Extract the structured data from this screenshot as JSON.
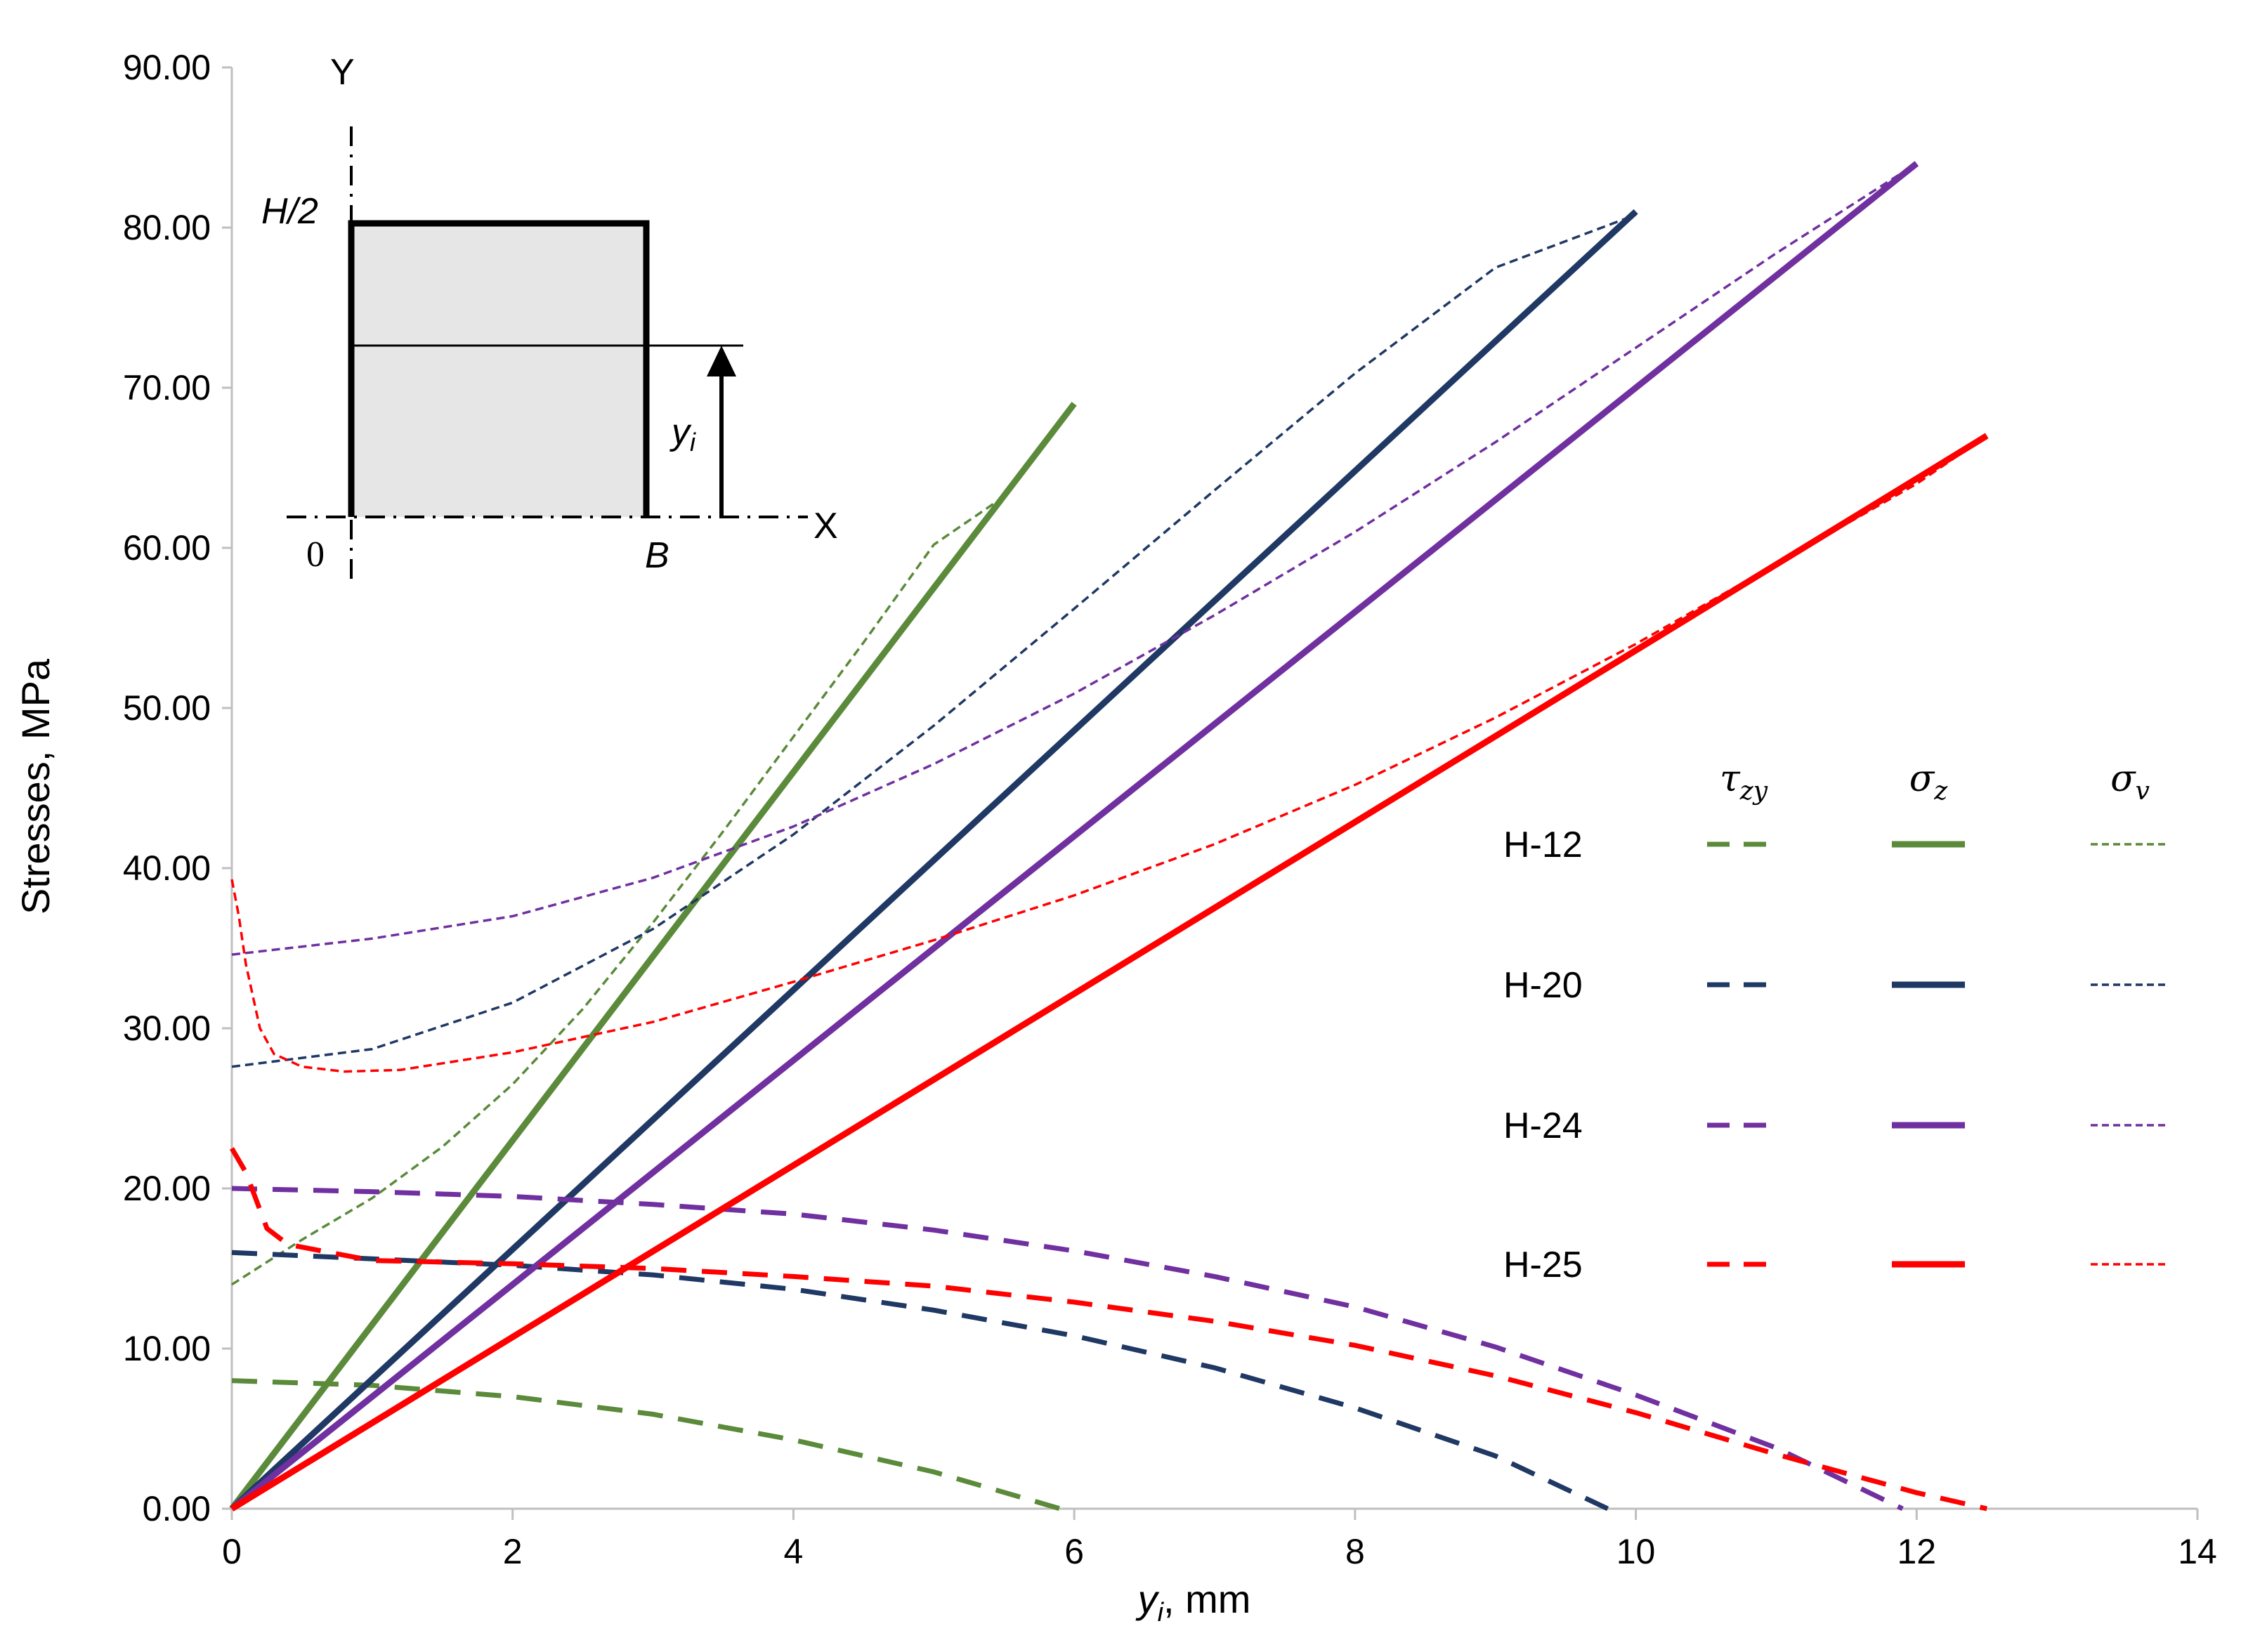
{
  "colors": {
    "H-12": "#5a8a3a",
    "H-20": "#1f3864",
    "H-24": "#7030a0",
    "H-25": "#ff0000",
    "axis": "#bfbfbf",
    "inset_fill": "#e6e6e6"
  },
  "chart_data": {
    "type": "line",
    "xlabel": {
      "main": "y",
      "sub": "i",
      "rest": ", mm"
    },
    "ylabel": "Stresses, MPa",
    "xlim": [
      0,
      14
    ],
    "ylim": [
      0,
      90
    ],
    "x_ticks": [
      0,
      2,
      4,
      6,
      8,
      10,
      12,
      14
    ],
    "x_tick_labels": [
      "0",
      "2",
      "4",
      "6",
      "8",
      "10",
      "12",
      "14"
    ],
    "y_ticks": [
      0,
      10,
      20,
      30,
      40,
      50,
      60,
      70,
      80,
      90
    ],
    "y_tick_labels": [
      "0.00",
      "10.00",
      "20.00",
      "30.00",
      "40.00",
      "50.00",
      "60.00",
      "70.00",
      "80.00",
      "90.00"
    ],
    "grid": false,
    "legend": {
      "placement": "right",
      "columns": [
        {
          "main": "τ",
          "sub": "zy"
        },
        {
          "main": "σ",
          "sub": "z"
        },
        {
          "main": "σ",
          "sub": "v"
        }
      ],
      "rows": [
        "H-12",
        "H-20",
        "H-24",
        "H-25"
      ]
    },
    "series": [
      {
        "name": "H-12",
        "stress": "tau_zy",
        "style": "dash",
        "x": [
          0,
          1,
          2,
          3,
          4,
          5,
          5.9
        ],
        "y": [
          8,
          7.7,
          7.0,
          5.9,
          4.3,
          2.3,
          0
        ]
      },
      {
        "name": "H-12",
        "stress": "sigma_z",
        "style": "solid",
        "x": [
          0,
          6.0
        ],
        "y": [
          0,
          69
        ]
      },
      {
        "name": "H-12",
        "stress": "sigma_v",
        "style": "dot",
        "x": [
          0,
          0.5,
          1,
          1.5,
          2,
          2.5,
          3,
          3.5,
          4,
          4.5,
          5,
          5.5
        ],
        "y": [
          14,
          16.8,
          19.4,
          22.6,
          26.5,
          31.2,
          36.6,
          42.3,
          48.2,
          54.1,
          60.2,
          63.2
        ]
      },
      {
        "name": "H-20",
        "stress": "tau_zy",
        "style": "dash",
        "x": [
          0,
          1,
          2,
          3,
          4,
          5,
          6,
          7,
          8,
          9,
          9.8
        ],
        "y": [
          16,
          15.6,
          15.2,
          14.6,
          13.7,
          12.4,
          10.8,
          8.8,
          6.3,
          3.3,
          0
        ]
      },
      {
        "name": "H-20",
        "stress": "sigma_z",
        "style": "solid",
        "x": [
          0,
          10.0
        ],
        "y": [
          0,
          81
        ]
      },
      {
        "name": "H-20",
        "stress": "sigma_v",
        "style": "dot",
        "x": [
          0,
          1,
          2,
          3,
          4,
          5,
          6,
          7,
          8,
          9,
          10
        ],
        "y": [
          27.6,
          28.7,
          31.6,
          36.2,
          42.1,
          48.9,
          56.2,
          63.6,
          70.9,
          77.5,
          80.8
        ]
      },
      {
        "name": "H-24",
        "stress": "tau_zy",
        "style": "dash",
        "x": [
          0,
          1,
          2,
          3,
          4,
          5,
          6,
          7,
          8,
          9,
          10,
          11,
          11.9
        ],
        "y": [
          20,
          19.8,
          19.5,
          19.0,
          18.4,
          17.4,
          16.1,
          14.5,
          12.6,
          10.1,
          7.1,
          3.8,
          0
        ]
      },
      {
        "name": "H-24",
        "stress": "sigma_z",
        "style": "solid",
        "x": [
          0,
          12.0
        ],
        "y": [
          0,
          84
        ]
      },
      {
        "name": "H-24",
        "stress": "sigma_v",
        "style": "dot",
        "x": [
          0,
          1,
          2,
          3,
          4,
          5,
          6,
          7,
          8,
          9,
          10,
          11,
          12
        ],
        "y": [
          34.6,
          35.6,
          37.0,
          39.4,
          42.6,
          46.5,
          50.9,
          55.8,
          61.0,
          66.6,
          72.5,
          78.4,
          84
        ]
      },
      {
        "name": "H-25",
        "stress": "tau_zy",
        "style": "dash",
        "x": [
          0,
          0.1,
          0.25,
          0.4,
          1,
          2,
          3,
          4,
          5,
          6,
          7,
          8,
          9,
          10,
          11,
          12,
          12.5
        ],
        "y": [
          22.5,
          21,
          17.5,
          16.5,
          15.5,
          15.3,
          15.0,
          14.5,
          13.9,
          12.9,
          11.7,
          10.2,
          8.3,
          6.0,
          3.4,
          1.0,
          0
        ]
      },
      {
        "name": "H-25",
        "stress": "sigma_z",
        "style": "solid",
        "x": [
          0,
          12.5
        ],
        "y": [
          0,
          67
        ]
      },
      {
        "name": "H-25",
        "stress": "sigma_v",
        "style": "dot",
        "x": [
          0,
          0.05,
          0.1,
          0.2,
          0.3,
          0.5,
          0.8,
          1.2,
          2,
          3,
          4,
          5,
          6,
          7,
          8,
          9,
          10,
          11,
          12,
          12.5
        ],
        "y": [
          39.3,
          37,
          34,
          30,
          28.4,
          27.6,
          27.3,
          27.4,
          28.5,
          30.4,
          32.9,
          35.5,
          38.3,
          41.5,
          45.2,
          49.4,
          54.0,
          59.0,
          64.0,
          67
        ]
      }
    ]
  },
  "inset": {
    "axis_y": "Y",
    "axis_x": "X",
    "origin": "0",
    "half_height": "H/2",
    "width": "B",
    "coord_main": "y",
    "coord_sub": "i"
  }
}
